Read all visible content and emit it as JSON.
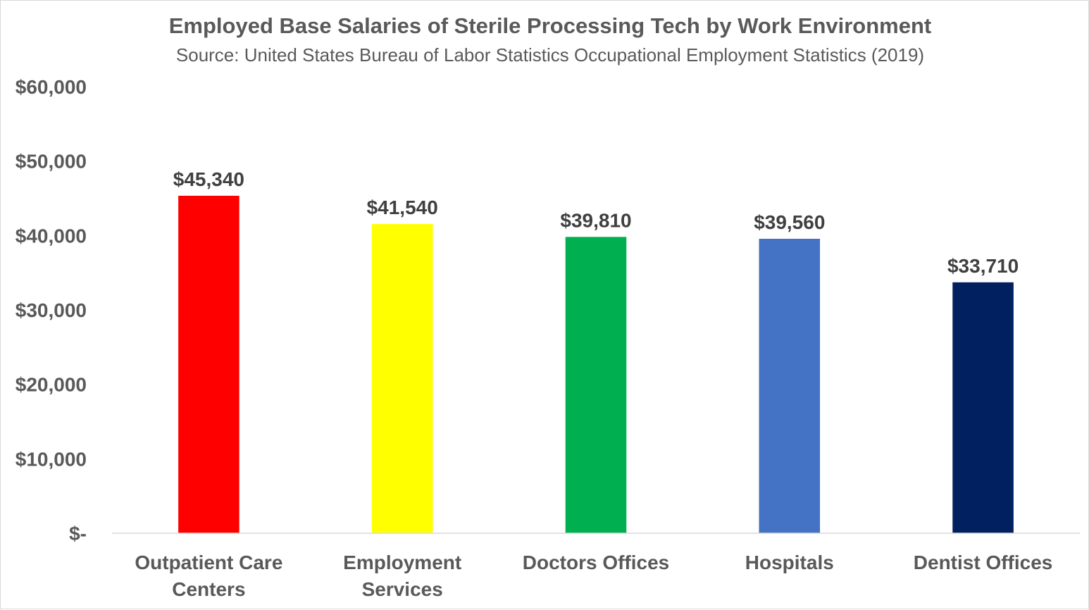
{
  "chart_data": {
    "type": "bar",
    "title": "Employed Base Salaries of Sterile Processing Tech by Work Environment",
    "subtitle": "Source: United States Bureau of Labor Statistics Occupational Employment Statistics (2019)",
    "categories": [
      [
        "Outpatient Care",
        "Centers"
      ],
      [
        "Employment",
        "Services"
      ],
      [
        "Doctors Offices"
      ],
      [
        "Hospitals"
      ],
      [
        "Dentist Offices"
      ]
    ],
    "values": [
      45340,
      41540,
      39810,
      39560,
      33710
    ],
    "data_labels": [
      "$45,340",
      "$41,540",
      "$39,810",
      "$39,560",
      "$33,710"
    ],
    "colors": [
      "#ff0000",
      "#ffff00",
      "#00b050",
      "#4472c4",
      "#002060"
    ],
    "ylim": [
      0,
      60000
    ],
    "yticks": [
      0,
      10000,
      20000,
      30000,
      40000,
      50000,
      60000
    ],
    "ytick_labels": [
      "$-",
      "$10,000",
      "$20,000",
      "$30,000",
      "$40,000",
      "$50,000",
      "$60,000"
    ],
    "grid": false,
    "legend": "none",
    "xlabel": "",
    "ylabel": ""
  }
}
